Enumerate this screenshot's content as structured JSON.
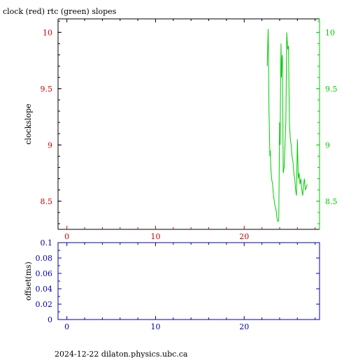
{
  "title": "clock (red) rtc (green) slopes",
  "footer": "2024-12-22  dilaton.physics.ubc.ca",
  "colors": {
    "red": "#cc0000",
    "green": "#00cc00",
    "blue": "#0000aa",
    "frame": "#000000"
  },
  "chart_data": [
    {
      "type": "line",
      "title": "clock (red) rtc (green) slopes",
      "ylabel": "clockslope",
      "xlim": [
        -1,
        28.5
      ],
      "ylim": [
        8.25,
        10.12
      ],
      "x_ticks": [
        0,
        10,
        20
      ],
      "x_tick_color": "#cc0000",
      "y_ticks_left": [
        "10",
        "9.5",
        "9",
        "8.5"
      ],
      "y_ticks_right": [
        "10",
        "9.5",
        "9",
        "8.5"
      ],
      "y_tick_values": [
        10,
        9.5,
        9,
        8.5
      ],
      "grid": false,
      "series": [
        {
          "color": "#00cc00",
          "x": [
            22.6,
            22.7,
            22.75,
            22.8,
            22.85,
            22.9,
            22.95,
            23.0,
            23.1,
            23.2,
            23.3,
            23.4,
            23.5,
            23.6,
            23.7,
            23.8,
            23.9,
            24.0,
            24.05,
            24.1,
            24.15,
            24.2,
            24.25,
            24.3,
            24.35,
            24.4,
            24.5,
            24.6,
            24.7,
            24.8,
            24.9,
            25.0,
            25.05,
            25.1,
            25.2,
            25.3,
            25.4,
            25.5,
            25.6,
            25.7,
            25.8,
            25.9,
            26.0,
            26.1,
            26.2,
            26.3,
            26.4,
            26.5,
            26.6,
            26.7,
            26.8,
            26.9,
            27.0,
            27.1
          ],
          "y": [
            9.7,
            10.03,
            9.75,
            9.3,
            9.1,
            8.9,
            8.95,
            8.8,
            8.7,
            8.65,
            8.55,
            8.5,
            8.45,
            8.42,
            8.35,
            8.32,
            8.33,
            9.2,
            9.0,
            9.5,
            9.9,
            9.6,
            9.75,
            9.8,
            9.4,
            8.75,
            8.8,
            9.0,
            9.2,
            10.0,
            9.85,
            9.88,
            9.5,
            9.2,
            9.05,
            9.0,
            8.9,
            8.85,
            8.75,
            8.7,
            8.6,
            8.55,
            9.05,
            8.7,
            8.75,
            8.65,
            8.7,
            8.6,
            8.55,
            8.65,
            8.7,
            8.6,
            8.62,
            8.65
          ]
        }
      ]
    },
    {
      "type": "line",
      "ylabel": "offset(ms)",
      "xlim": [
        -1,
        28.5
      ],
      "ylim": [
        0,
        0.1
      ],
      "x_ticks": [
        0,
        10,
        20
      ],
      "y_ticks": [
        "0",
        "0.02",
        "0.04",
        "0.06",
        "0.08",
        "0.1"
      ],
      "y_tick_values": [
        0,
        0.02,
        0.04,
        0.06,
        0.08,
        0.1
      ],
      "grid": false,
      "series": []
    }
  ]
}
